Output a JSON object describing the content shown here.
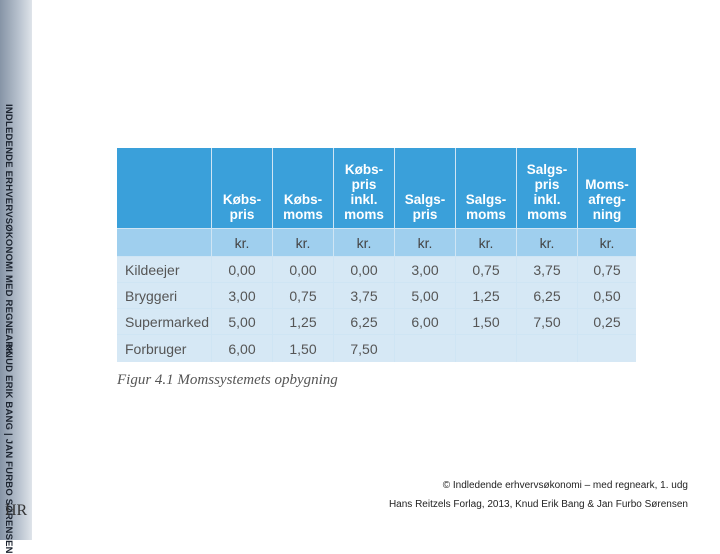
{
  "sidebar": {
    "title": "INDLEDENDE ERHVERVSØKONOMI MED REGNEARK",
    "authors": "KNUD ERIK BANG | JAN FURBO SØRENSEN",
    "logo": "HR"
  },
  "table": {
    "headers": [
      [
        "Købs-",
        "pris"
      ],
      [
        "Købs-",
        "moms"
      ],
      [
        "Købs-",
        "pris",
        "inkl.",
        "moms"
      ],
      [
        "Salgs-",
        "pris"
      ],
      [
        "Salgs-",
        "moms"
      ],
      [
        "Salgs-",
        "pris",
        "inkl.",
        "moms"
      ],
      [
        "Moms-",
        "afreg-",
        "ning"
      ]
    ],
    "units": [
      "kr.",
      "kr.",
      "kr.",
      "kr.",
      "kr.",
      "kr.",
      "kr."
    ],
    "rows": [
      [
        "Kildeejer",
        "0,00",
        "0,00",
        "0,00",
        "3,00",
        "0,75",
        "3,75",
        "0,75"
      ],
      [
        "Bryggeri",
        "3,00",
        "0,75",
        "3,75",
        "5,00",
        "1,25",
        "6,25",
        "0,50"
      ],
      [
        "Supermarked",
        "5,00",
        "1,25",
        "6,25",
        "6,00",
        "1,50",
        "7,50",
        "0,25"
      ],
      [
        "Forbruger",
        "6,00",
        "1,50",
        "7,50"
      ]
    ]
  },
  "caption": "Figur 4.1 Momssystemets opbygning",
  "footer": [
    "© Indledende erhvervsøkonomi – med regneark, 1. udg",
    "Hans Reitzels Forlag, 2013, Knud Erik Bang & Jan Furbo Sørensen"
  ]
}
